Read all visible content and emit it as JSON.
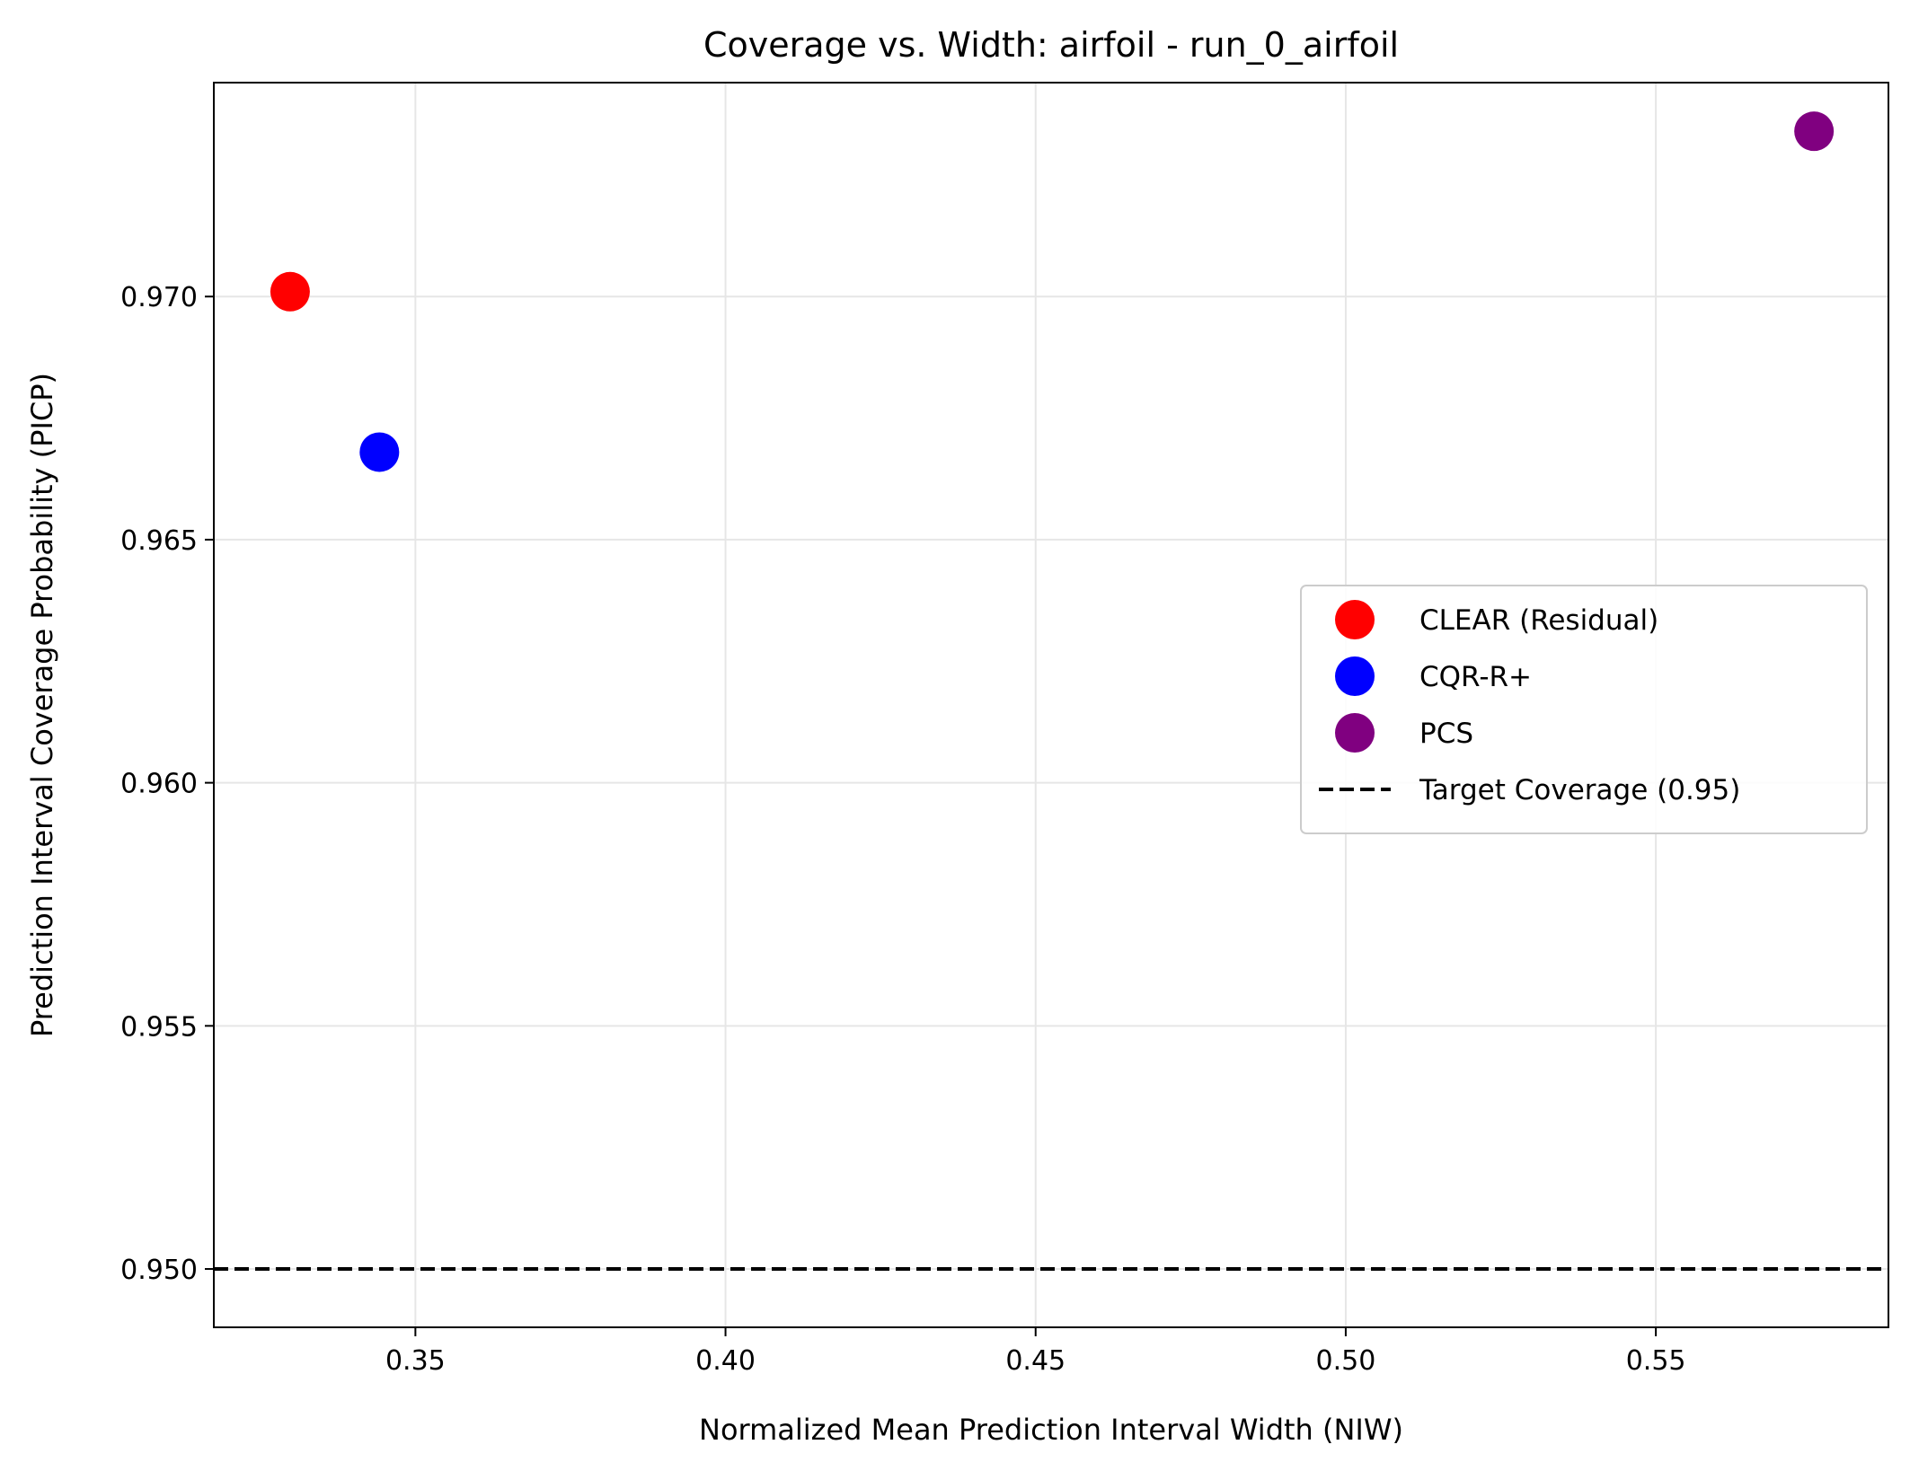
{
  "chart_data": {
    "type": "scatter",
    "title": "Coverage vs. Width: airfoil - run_0_airfoil",
    "xlabel": "Normalized Mean Prediction Interval Width (NIW)",
    "ylabel": "Prediction Interval Coverage Probability (PICP)",
    "xlim": [
      0.3175,
      0.5875
    ],
    "ylim": [
      0.9488,
      0.9744
    ],
    "xticks": [
      0.35,
      0.4,
      0.45,
      0.5,
      0.55
    ],
    "xtick_labels": [
      "0.35",
      "0.40",
      "0.45",
      "0.50",
      "0.55"
    ],
    "yticks": [
      0.95,
      0.955,
      0.96,
      0.965,
      0.97
    ],
    "ytick_labels": [
      "0.950",
      "0.955",
      "0.960",
      "0.965",
      "0.970"
    ],
    "grid": true,
    "legend_position": "center-right",
    "series": [
      {
        "name": "CLEAR (Residual)",
        "color": "#ff0000",
        "x": [
          0.3298
        ],
        "y": [
          0.9701
        ]
      },
      {
        "name": "CQR-R+",
        "color": "#0000ff",
        "x": [
          0.3442
        ],
        "y": [
          0.9668
        ]
      },
      {
        "name": "PCS",
        "color": "#800080",
        "x": [
          0.5755
        ],
        "y": [
          0.9734
        ]
      }
    ],
    "reference_lines": [
      {
        "name": "Target Coverage (0.95)",
        "orientation": "horizontal",
        "value": 0.95,
        "style": "dashed",
        "color": "#000000"
      }
    ]
  }
}
